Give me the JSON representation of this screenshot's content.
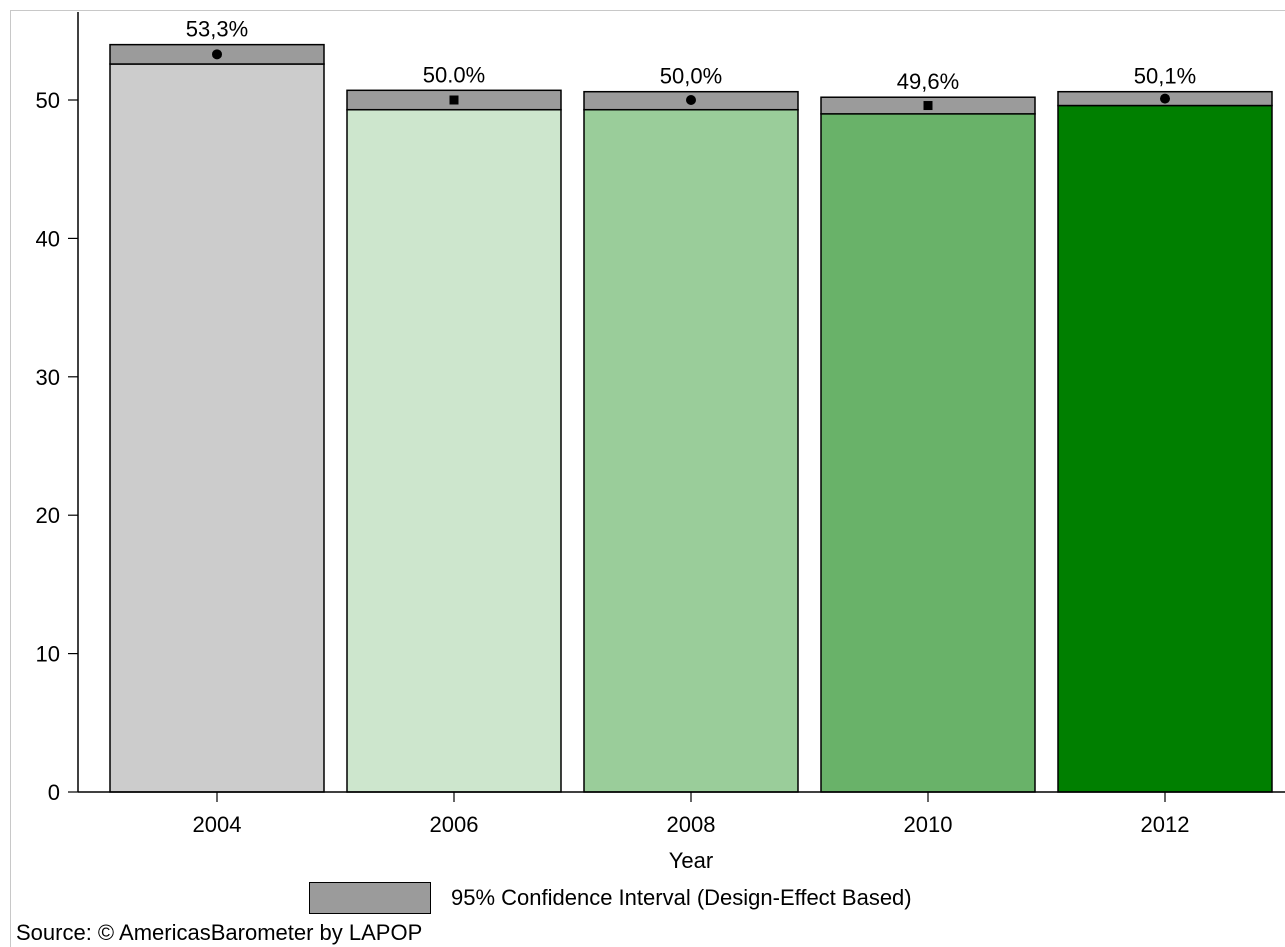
{
  "chart_data": {
    "type": "bar",
    "xlabel": "Year",
    "ylabel": "",
    "ylim": [
      0,
      56
    ],
    "yticks": [
      0,
      10,
      20,
      30,
      40,
      50
    ],
    "categories": [
      "2004",
      "2006",
      "2008",
      "2010",
      "2012"
    ],
    "values": [
      53.3,
      50.0,
      50.0,
      49.6,
      50.1
    ],
    "value_labels": [
      "53,3%",
      "50.0%",
      "50,0%",
      "49,6%",
      "50,1%"
    ],
    "ci_lower": [
      52.6,
      49.3,
      49.3,
      49.0,
      49.6
    ],
    "ci_upper": [
      54.0,
      50.7,
      50.6,
      50.2,
      50.6
    ],
    "bar_colors": [
      "#cccccc",
      "#cde6cd",
      "#9acd9a",
      "#69b269",
      "#007f00"
    ],
    "ci_color": "#9b9b9b",
    "grid": false,
    "legend": {
      "position": "bottom",
      "entries": [
        {
          "label": "95% Confidence Interval (Design-Effect Based)",
          "color": "#9b9b9b"
        }
      ]
    }
  },
  "source": "Source: © AmericasBarometer by LAPOP"
}
